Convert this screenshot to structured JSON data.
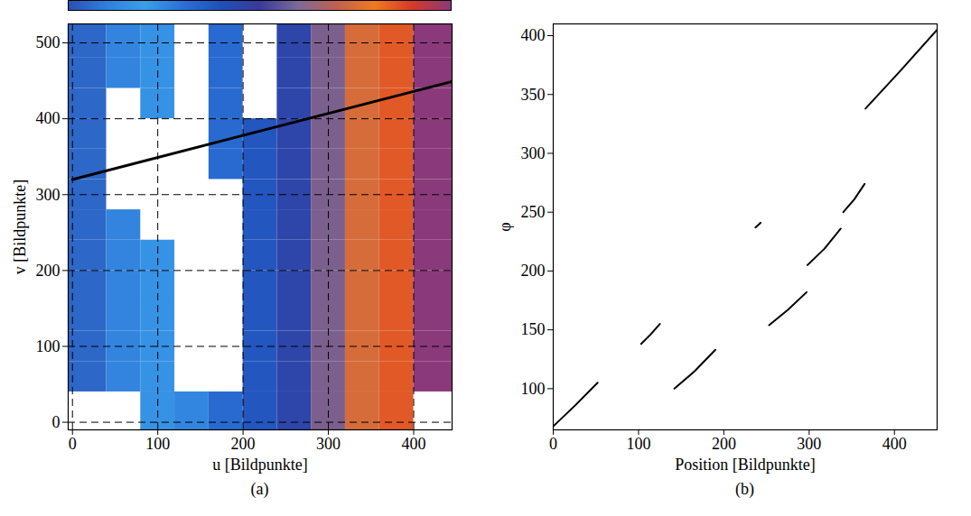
{
  "chart_data": [
    {
      "type": "image",
      "caption": "(a)",
      "x_label": "u [Bildpunkte]",
      "y_label": "v [Bildpunkte]",
      "xlim": [
        -5,
        445
      ],
      "ylim": [
        -10,
        525
      ],
      "xticks": [
        0,
        100,
        200,
        300,
        400
      ],
      "yticks": [
        0,
        100,
        200,
        300,
        400,
        500
      ],
      "grid": true,
      "u_edges": [
        -5,
        40,
        80,
        120,
        160,
        200,
        240,
        280,
        320,
        360,
        400,
        445
      ],
      "v_edges": [
        -10,
        40,
        80,
        120,
        160,
        200,
        240,
        280,
        320,
        360,
        400,
        440,
        480,
        525
      ],
      "cells": [
        [
          null,
          null,
          0.2,
          0.25,
          0.32,
          0.38,
          0.45,
          0.6,
          0.75,
          0.85,
          null
        ],
        [
          0.05,
          0.12,
          0.2,
          null,
          null,
          0.38,
          0.45,
          0.6,
          0.75,
          0.85,
          1.0
        ],
        [
          0.05,
          0.12,
          0.2,
          null,
          null,
          0.38,
          0.45,
          0.6,
          0.75,
          0.85,
          1.0
        ],
        [
          0.05,
          0.12,
          0.2,
          null,
          null,
          0.38,
          0.45,
          0.6,
          0.75,
          0.85,
          1.0
        ],
        [
          0.05,
          0.12,
          0.2,
          null,
          null,
          0.38,
          0.45,
          0.6,
          0.75,
          0.85,
          1.0
        ],
        [
          0.05,
          0.12,
          0.2,
          null,
          null,
          0.38,
          0.45,
          0.6,
          0.75,
          0.85,
          1.0
        ],
        [
          0.05,
          0.12,
          null,
          null,
          null,
          0.38,
          0.45,
          0.6,
          0.75,
          0.85,
          1.0
        ],
        [
          0.05,
          null,
          null,
          null,
          null,
          0.38,
          0.45,
          0.6,
          0.75,
          0.85,
          1.0
        ],
        [
          0.05,
          null,
          null,
          null,
          0.32,
          0.38,
          0.45,
          0.6,
          0.75,
          0.85,
          1.0
        ],
        [
          0.05,
          null,
          null,
          null,
          0.32,
          0.38,
          0.45,
          0.6,
          0.75,
          0.85,
          1.0
        ],
        [
          0.05,
          null,
          0.2,
          null,
          0.32,
          null,
          0.45,
          0.6,
          0.75,
          0.85,
          1.0
        ],
        [
          0.05,
          0.12,
          0.2,
          null,
          0.32,
          null,
          0.45,
          0.6,
          0.75,
          0.85,
          1.0
        ],
        [
          0.05,
          0.12,
          0.2,
          null,
          0.32,
          null,
          0.45,
          0.6,
          0.75,
          0.85,
          1.0
        ]
      ],
      "color_range": [
        0,
        1
      ],
      "colors": [
        "#2a4fb0",
        "#2f7fe0",
        "#3a9fe8",
        "#2a6fd8",
        "#1f4fb8",
        "#3a3a9a",
        "#7a6a9a",
        "#c06050",
        "#f07a20",
        "#d83828",
        "#8a3a7a"
      ],
      "line": {
        "x": [
          0,
          445
        ],
        "y": [
          320,
          449
        ],
        "color": "#000000"
      }
    },
    {
      "type": "line",
      "caption": "(b)",
      "x_label": "Position [Bildpunkte]",
      "y_label": "φ",
      "xlim": [
        0,
        450
      ],
      "ylim": [
        65,
        410
      ],
      "xticks": [
        0,
        100,
        200,
        300,
        400
      ],
      "yticks": [
        100,
        150,
        200,
        250,
        300,
        350,
        400
      ],
      "x": [
        0,
        26,
        52,
        null,
        103,
        114,
        125,
        null,
        142,
        166,
        190,
        null,
        237,
        243,
        null,
        253,
        275,
        297,
        null,
        298,
        318,
        337,
        null,
        340,
        353,
        365,
        null,
        366,
        408,
        450
      ],
      "values": [
        68,
        86,
        105,
        null,
        138,
        146,
        155,
        null,
        100,
        115,
        133,
        null,
        237,
        241,
        null,
        154,
        167,
        182,
        null,
        205,
        219,
        236,
        null,
        250,
        261,
        274,
        null,
        338,
        371,
        405
      ],
      "color": "#000000"
    }
  ]
}
